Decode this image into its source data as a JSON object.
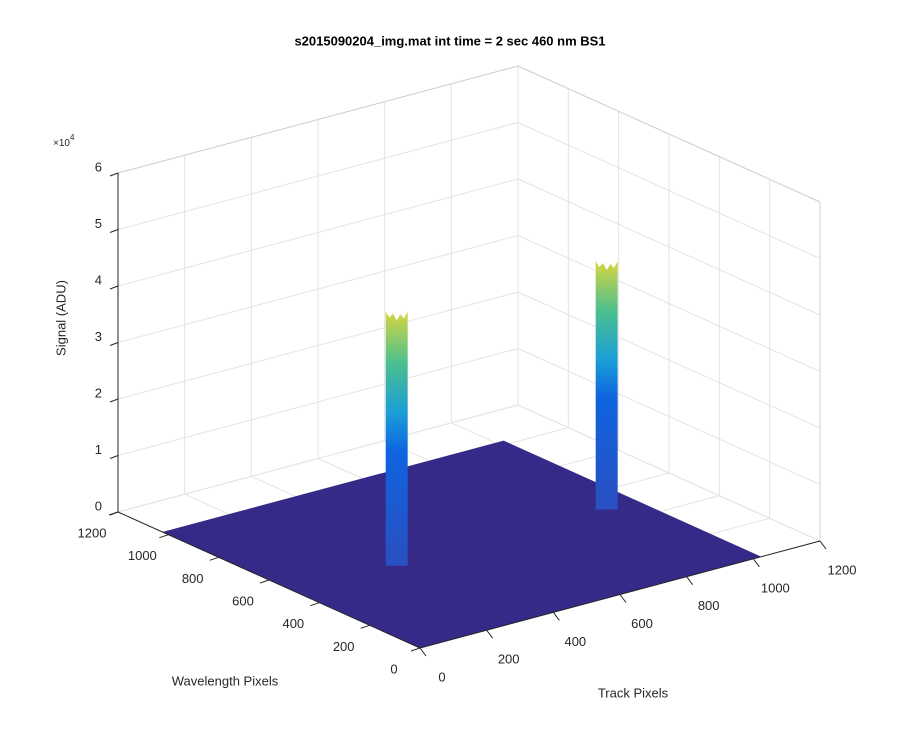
{
  "chart_data": {
    "type": "surface3d",
    "title": "s2015090204_img.mat int time = 2 sec  460 nm BS1",
    "x_label": "Track Pixels",
    "y_label": "Wavelength Pixels",
    "z_label": "Signal (ADU)",
    "z_multiplier": {
      "base": "×10",
      "power": "4"
    },
    "xlim": [
      0,
      1200
    ],
    "xticks": [
      0,
      200,
      400,
      600,
      800,
      1000,
      1200
    ],
    "ylim": [
      0,
      1200
    ],
    "yticks": [
      0,
      200,
      400,
      600,
      800,
      1000,
      1200
    ],
    "zlim": [
      0,
      6
    ],
    "zticks": [
      0,
      1,
      2,
      3,
      4,
      5,
      6
    ],
    "grid": true,
    "floor": {
      "track": [
        0,
        1024
      ],
      "wavelength": [
        0,
        1024
      ],
      "value": 0,
      "color": "#352a87"
    },
    "peaks": [
      {
        "track": 300,
        "wavelength": 490,
        "value": 4.5
      },
      {
        "track": 930,
        "wavelength": 490,
        "value": 4.4
      }
    ]
  }
}
